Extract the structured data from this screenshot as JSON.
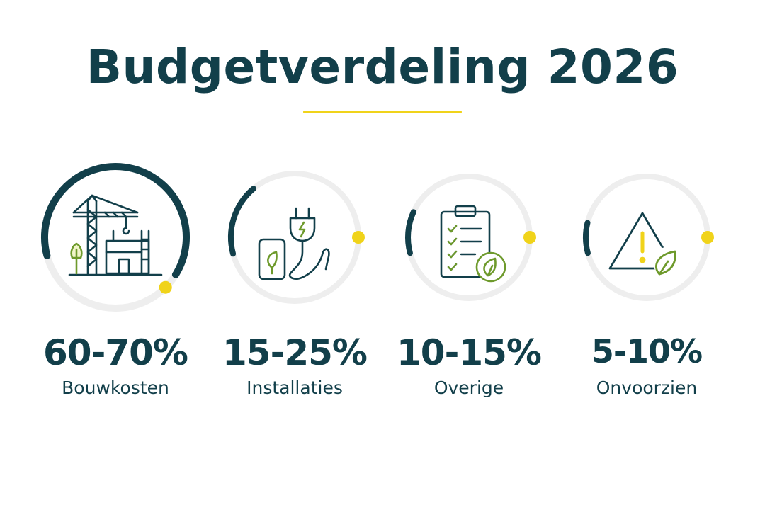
{
  "page": {
    "title": "Budgetverdeling 2026"
  },
  "colors": {
    "accent_dark": "#123f4a",
    "accent_yellow": "#f0d31a",
    "ring_track": "#eeeeee",
    "leaf_green": "#6e9a2c"
  },
  "chart_data": {
    "type": "progress-rings",
    "title": "Budgetverdeling 2026",
    "unit": "%",
    "categories": [
      "Bouwkosten",
      "Installaties",
      "Overige",
      "Onvoorzien"
    ],
    "series": [
      {
        "label": "60-70%",
        "name": "Bouwkosten",
        "range": [
          60,
          70
        ],
        "fill_fraction": 0.63,
        "icon": "construction-crane-icon"
      },
      {
        "label": "15-25%",
        "name": "Installaties",
        "range": [
          15,
          25
        ],
        "fill_fraction": 0.18,
        "icon": "plug-battery-leaf-icon"
      },
      {
        "label": "10-15%",
        "name": "Overige",
        "range": [
          10,
          15
        ],
        "fill_fraction": 0.11,
        "icon": "clipboard-checklist-leaf-icon"
      },
      {
        "label": "5-10%",
        "name": "Onvoorzien",
        "range": [
          5,
          10
        ],
        "fill_fraction": 0.08,
        "icon": "warning-triangle-leaf-icon"
      }
    ]
  }
}
